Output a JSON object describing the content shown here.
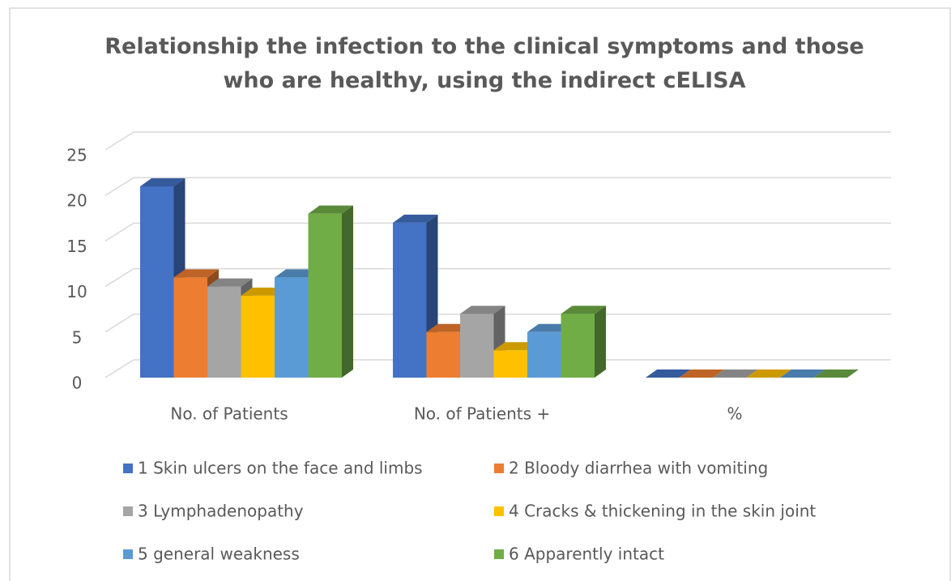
{
  "chart_data": {
    "type": "bar3d",
    "title": "Relationship the infection to the clinical symptoms and those who are healthy, using the indirect cELISA",
    "categories": [
      "No. of Patients",
      "No. of Patients +",
      "%"
    ],
    "series": [
      {
        "name": "1 Skin ulcers on the face and limbs",
        "color": "#4472c4",
        "values": [
          21,
          17,
          0
        ]
      },
      {
        "name": "2 Bloody diarrhea with vomiting",
        "color": "#ed7d31",
        "values": [
          11,
          5,
          0
        ]
      },
      {
        "name": "3 Lymphadenopathy",
        "color": "#a5a5a5",
        "values": [
          10,
          7,
          0
        ]
      },
      {
        "name": "4 Cracks & thickening in the skin joint",
        "color": "#ffc000",
        "values": [
          9,
          3,
          0
        ]
      },
      {
        "name": "5 general weakness",
        "color": "#5b9bd5",
        "values": [
          11,
          5,
          0
        ]
      },
      {
        "name": "6 Apparently intact",
        "color": "#70ad47",
        "values": [
          18,
          7,
          0
        ]
      }
    ],
    "ylim": [
      0,
      25
    ],
    "yticks": [
      0,
      5,
      10,
      15,
      20,
      25
    ],
    "grid": true,
    "legend": "bottom"
  }
}
